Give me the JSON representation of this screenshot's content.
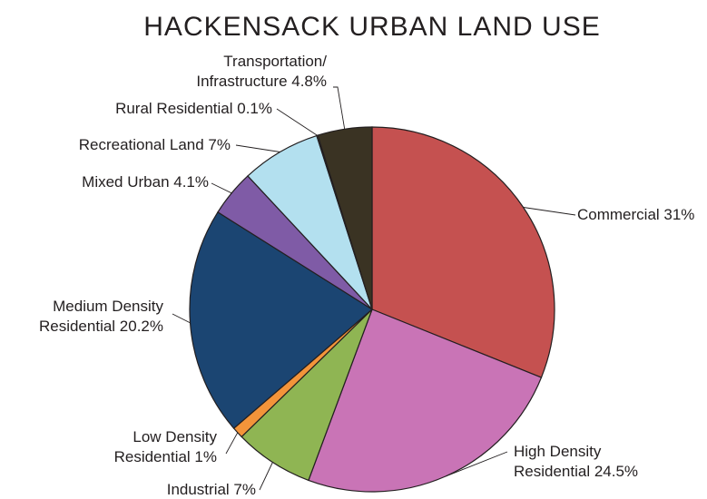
{
  "chart_data": {
    "type": "pie",
    "title": "HACKENSACK URBAN LAND USE",
    "start_angle_deg": 0,
    "direction": "clockwise",
    "legend": "none",
    "slices": [
      {
        "label": [
          "Commercial 31%"
        ],
        "value": 31,
        "color": "#c55150"
      },
      {
        "label": [
          "High Density",
          "Residential 24.5%"
        ],
        "value": 24.5,
        "color": "#c974b6"
      },
      {
        "label": [
          "Industrial 7%"
        ],
        "value": 7,
        "color": "#8fb553"
      },
      {
        "label": [
          "Low Density",
          "Residential 1%"
        ],
        "value": 1,
        "color": "#f3943a"
      },
      {
        "label": [
          "Medium Density",
          "Residential 20.2%"
        ],
        "value": 20.2,
        "color": "#1b4572"
      },
      {
        "label": [
          "Mixed Urban 4.1%"
        ],
        "value": 4.1,
        "color": "#7f5ba6"
      },
      {
        "label": [
          "Recreational Land 7%"
        ],
        "value": 7,
        "color": "#b3e0ef"
      },
      {
        "label": [
          "Rural Residential 0.1%"
        ],
        "value": 0.1,
        "color": "#e8e4d6"
      },
      {
        "label": [
          "Transportation/",
          "Infrastructure 4.8%"
        ],
        "value": 4.8,
        "color": "#3a3323"
      }
    ]
  }
}
